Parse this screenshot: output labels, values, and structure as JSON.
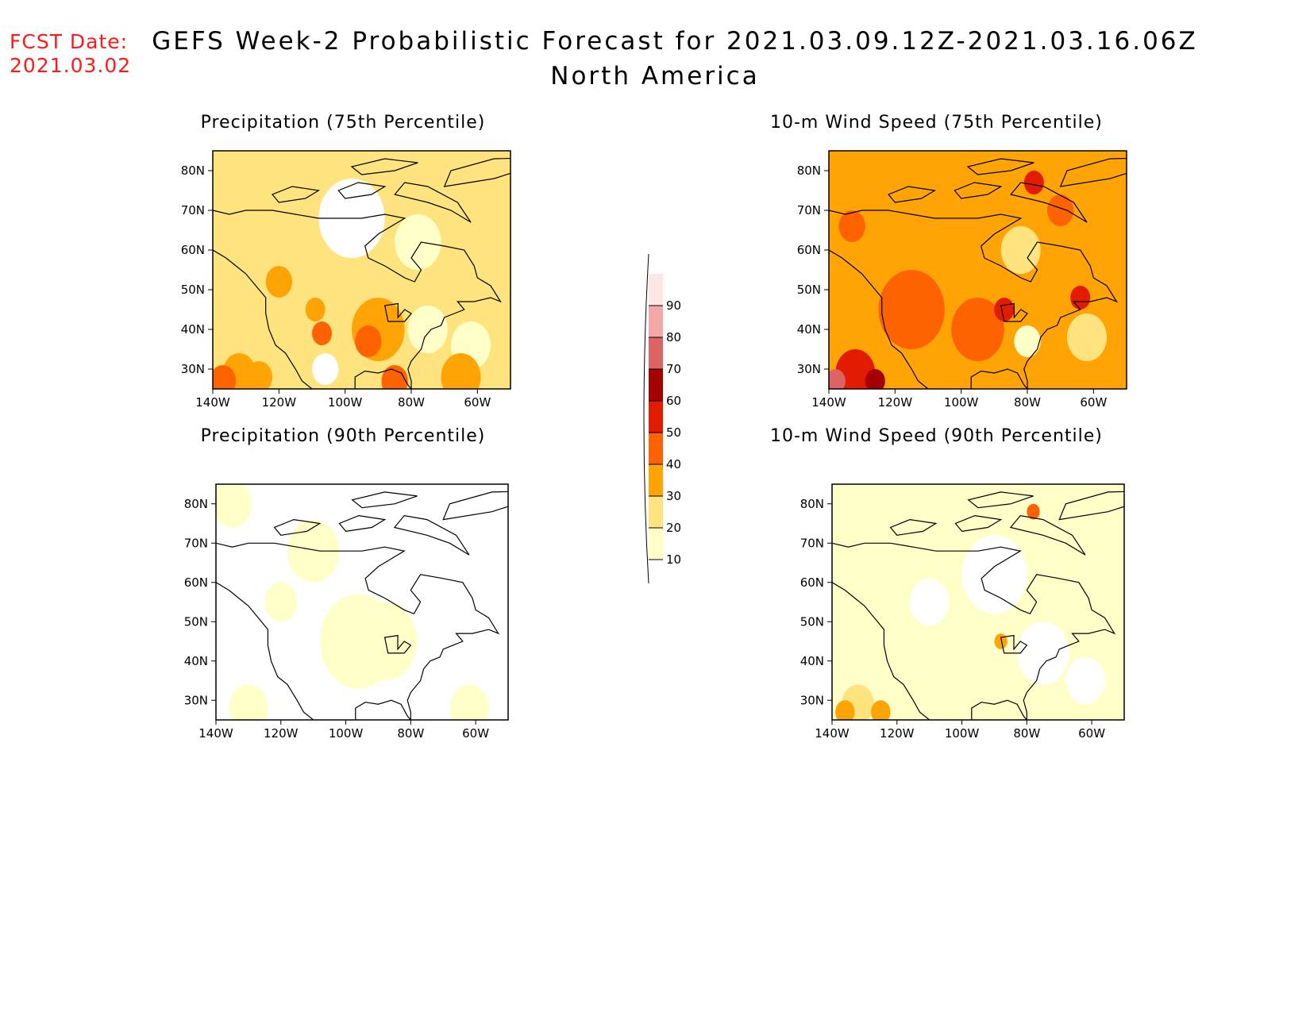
{
  "header": {
    "fcst_label": "FCST Date:",
    "fcst_date": "2021.03.02",
    "title_line1": "GEFS Week-2 Probabilistic Forecast for 2021.03.09.12Z-2021.03.16.06Z",
    "title_line2": "North America"
  },
  "colors": {
    "fcst_text": "#ff1a1a",
    "scale": [
      "#ffffc8",
      "#ffe37e",
      "#ffa404",
      "#ff6200",
      "#e31b00",
      "#a50000",
      "#dc6464",
      "#f4a7a7",
      "#fde6e6"
    ]
  },
  "colorbar": {
    "levels": [
      "10",
      "20",
      "30",
      "40",
      "50",
      "60",
      "70",
      "80",
      "90"
    ]
  },
  "axes": {
    "lat_labels": [
      "30N",
      "40N",
      "50N",
      "60N",
      "70N",
      "80N"
    ],
    "lon_labels": [
      "140W",
      "120W",
      "100W",
      "80W",
      "60W"
    ],
    "lat_values": [
      30,
      40,
      50,
      60,
      70,
      80
    ],
    "lon_values": [
      -140,
      -120,
      -100,
      -80,
      -60
    ],
    "lon_range": [
      -140,
      -50
    ],
    "lat_range": [
      25,
      85
    ]
  },
  "panels": [
    {
      "id": "precip75",
      "title": "Precipitation (75th Percentile)",
      "base_level": 1,
      "regions": [
        {
          "lon": -132,
          "lat": 29,
          "r": 5,
          "level": 2
        },
        {
          "lon": -126,
          "lat": 28,
          "r": 4,
          "level": 2
        },
        {
          "lon": -137,
          "lat": 27,
          "r": 4,
          "level": 3
        },
        {
          "lon": -107,
          "lat": 39,
          "r": 3,
          "level": 3
        },
        {
          "lon": -109,
          "lat": 45,
          "r": 3,
          "level": 2
        },
        {
          "lon": -90,
          "lat": 40,
          "r": 8,
          "level": 2
        },
        {
          "lon": -93,
          "lat": 37,
          "r": 4,
          "level": 3
        },
        {
          "lon": -120,
          "lat": 52,
          "r": 4,
          "level": 2
        },
        {
          "lon": -75,
          "lat": 40,
          "r": 6,
          "level": 0
        },
        {
          "lon": -62,
          "lat": 36,
          "r": 6,
          "level": 0
        },
        {
          "lon": -65,
          "lat": 28,
          "r": 6,
          "level": 2
        },
        {
          "lon": -85,
          "lat": 27,
          "r": 4,
          "level": 3
        },
        {
          "lon": -98,
          "lat": 68,
          "r": 10,
          "level": -1
        },
        {
          "lon": -78,
          "lat": 62,
          "r": 7,
          "level": 0
        },
        {
          "lon": -106,
          "lat": 30,
          "r": 4,
          "level": -1
        }
      ]
    },
    {
      "id": "wind75",
      "title": "10-m Wind Speed (75th Percentile)",
      "base_level": 2,
      "regions": [
        {
          "lon": -132,
          "lat": 29,
          "r": 6,
          "level": 4
        },
        {
          "lon": -138,
          "lat": 27,
          "r": 3,
          "level": 6
        },
        {
          "lon": -126,
          "lat": 27,
          "r": 3,
          "level": 5
        },
        {
          "lon": -115,
          "lat": 45,
          "r": 10,
          "level": 3
        },
        {
          "lon": -95,
          "lat": 40,
          "r": 8,
          "level": 3
        },
        {
          "lon": -87,
          "lat": 45,
          "r": 3,
          "level": 4
        },
        {
          "lon": -64,
          "lat": 48,
          "r": 3,
          "level": 4
        },
        {
          "lon": -78,
          "lat": 77,
          "r": 3,
          "level": 4
        },
        {
          "lon": -133,
          "lat": 66,
          "r": 4,
          "level": 3
        },
        {
          "lon": -70,
          "lat": 70,
          "r": 4,
          "level": 3
        },
        {
          "lon": -82,
          "lat": 60,
          "r": 6,
          "level": 1
        },
        {
          "lon": -80,
          "lat": 37,
          "r": 4,
          "level": 0
        },
        {
          "lon": -62,
          "lat": 38,
          "r": 6,
          "level": 1
        }
      ]
    },
    {
      "id": "precip90",
      "title": "Precipitation (90th Percentile)",
      "base_level": -1,
      "regions": [
        {
          "lon": -96,
          "lat": 45,
          "r": 12,
          "level": 0
        },
        {
          "lon": -88,
          "lat": 45,
          "r": 10,
          "level": 0
        },
        {
          "lon": -130,
          "lat": 28,
          "r": 6,
          "level": 0
        },
        {
          "lon": -62,
          "lat": 28,
          "r": 6,
          "level": 0
        },
        {
          "lon": -135,
          "lat": 80,
          "r": 6,
          "level": 0
        },
        {
          "lon": -120,
          "lat": 55,
          "r": 5,
          "level": 0
        },
        {
          "lon": -110,
          "lat": 68,
          "r": 8,
          "level": 0
        }
      ]
    },
    {
      "id": "wind90",
      "title": "10-m Wind Speed (90th Percentile)",
      "base_level": 0,
      "regions": [
        {
          "lon": -132,
          "lat": 29,
          "r": 5,
          "level": 1
        },
        {
          "lon": -136,
          "lat": 27,
          "r": 3,
          "level": 2
        },
        {
          "lon": -125,
          "lat": 27,
          "r": 3,
          "level": 2
        },
        {
          "lon": -78,
          "lat": 78,
          "r": 2,
          "level": 3
        },
        {
          "lon": -88,
          "lat": 45,
          "r": 2,
          "level": 2
        },
        {
          "lon": -90,
          "lat": 62,
          "r": 10,
          "level": -1
        },
        {
          "lon": -75,
          "lat": 42,
          "r": 8,
          "level": -1
        },
        {
          "lon": -62,
          "lat": 35,
          "r": 6,
          "level": -1
        },
        {
          "lon": -110,
          "lat": 55,
          "r": 6,
          "level": -1
        }
      ]
    }
  ]
}
